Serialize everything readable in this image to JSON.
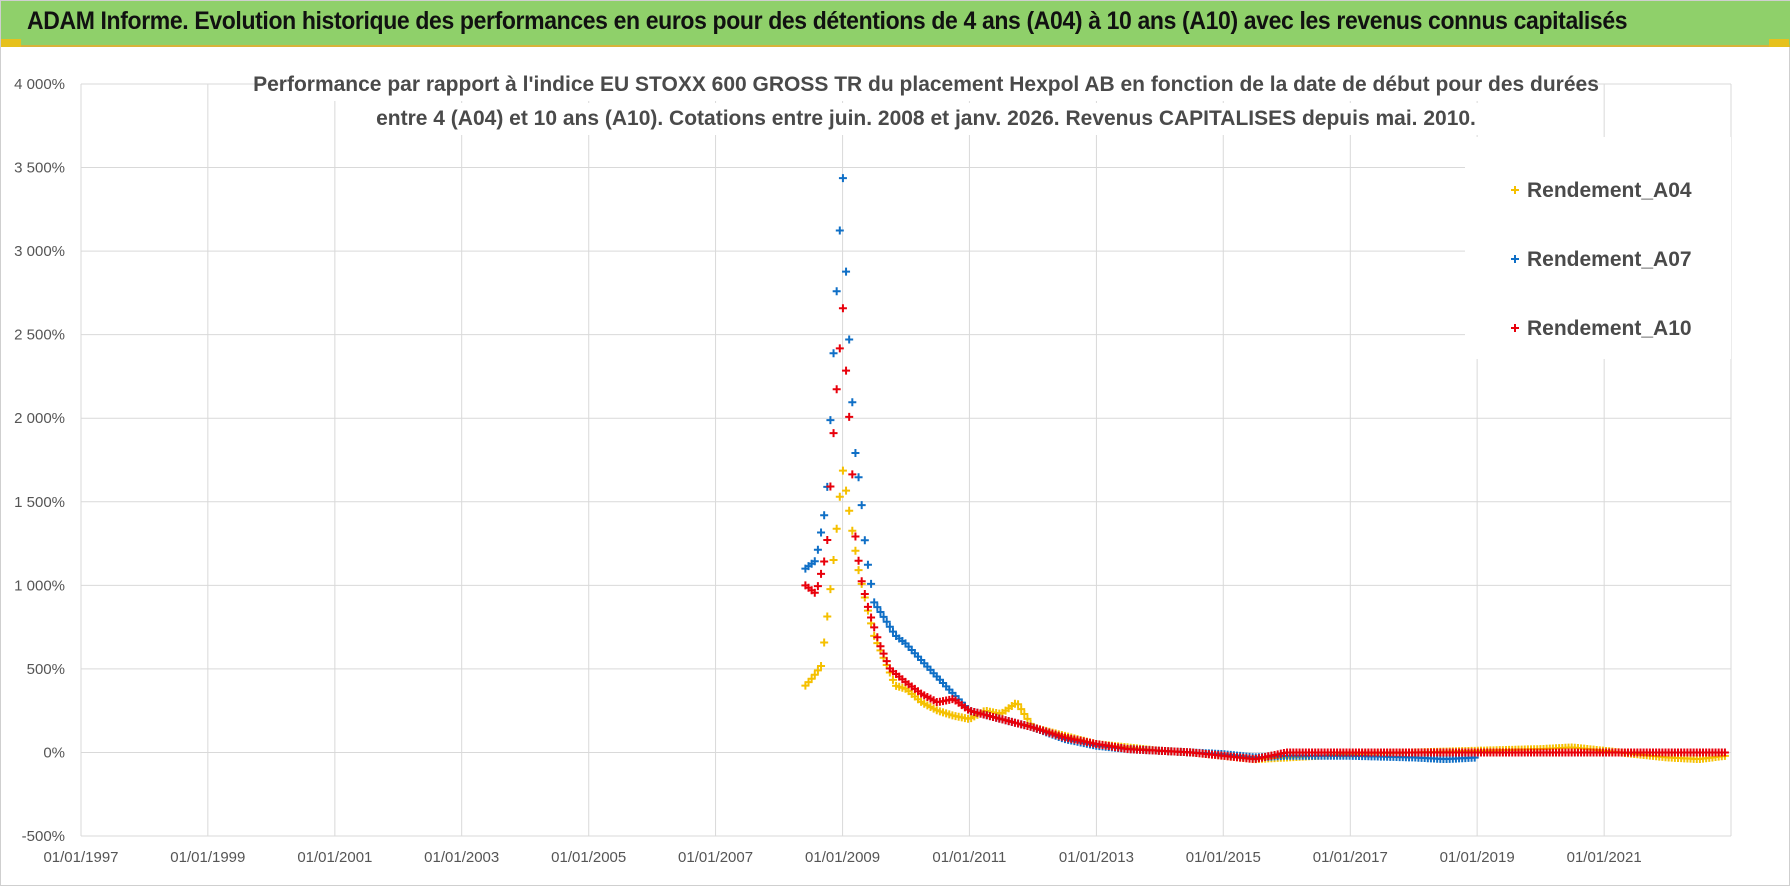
{
  "header": {
    "title": "ADAM Informe. Evolution historique des performances en euros pour des détentions de 4 ans (A04) à 10 ans (A10) avec les revenus connus capitalisés"
  },
  "colors": {
    "header_bg": "#8fd06a",
    "A04": "#f5c000",
    "A07": "#0f6fc6",
    "A10": "#e8000b",
    "grid": "#d9d9d9"
  },
  "chart_data": {
    "type": "scatter",
    "title_lines": [
      "Performance par rapport à l'indice EU STOXX 600 GROSS TR  du placement Hexpol AB en fonction de la date de début pour des durées",
      "entre 4 (A04) et 10 ans (A10). Cotations entre juin. 2008 et janv. 2026. Revenus CAPITALISES depuis mai. 2010."
    ],
    "x_axis": {
      "type": "date",
      "range": [
        "1997-01-01",
        "2023-01-01"
      ],
      "tick_labels": [
        "01/01/1997",
        "01/01/1999",
        "01/01/2001",
        "01/01/2003",
        "01/01/2005",
        "01/01/2007",
        "01/01/2009",
        "01/01/2011",
        "01/01/2013",
        "01/01/2015",
        "01/01/2017",
        "01/01/2019",
        "01/01/2021"
      ]
    },
    "y_axis": {
      "range": [
        -500,
        4000
      ],
      "step": 500,
      "tick_labels": [
        "-500%",
        "0%",
        "500%",
        "1 000%",
        "1 500%",
        "2 000%",
        "2 500%",
        "3 000%",
        "3 500%",
        "4 000%"
      ]
    },
    "grid": true,
    "legend_position": "top-right",
    "marker": "+",
    "series": [
      {
        "name": "Rendement_A04",
        "color": "#f5c000",
        "points": [
          [
            "2008-06-01",
            400
          ],
          [
            "2008-07-15",
            450
          ],
          [
            "2008-09-01",
            520
          ],
          [
            "2008-10-15",
            900
          ],
          [
            "2008-11-15",
            1200
          ],
          [
            "2009-01-01",
            1700
          ],
          [
            "2009-02-15",
            1400
          ],
          [
            "2009-04-01",
            1100
          ],
          [
            "2009-05-15",
            900
          ],
          [
            "2009-07-01",
            700
          ],
          [
            "2009-09-01",
            550
          ],
          [
            "2009-11-01",
            400
          ],
          [
            "2010-01-01",
            380
          ],
          [
            "2010-04-01",
            300
          ],
          [
            "2010-07-01",
            250
          ],
          [
            "2010-10-01",
            220
          ],
          [
            "2011-01-01",
            200
          ],
          [
            "2011-04-01",
            250
          ],
          [
            "2011-07-01",
            230
          ],
          [
            "2011-10-01",
            300
          ],
          [
            "2012-01-01",
            150
          ],
          [
            "2012-07-01",
            100
          ],
          [
            "2013-01-01",
            50
          ],
          [
            "2013-07-01",
            30
          ],
          [
            "2014-01-01",
            10
          ],
          [
            "2014-07-01",
            0
          ],
          [
            "2015-01-01",
            -20
          ],
          [
            "2015-07-01",
            -40
          ],
          [
            "2016-01-01",
            -30
          ],
          [
            "2017-01-01",
            -10
          ],
          [
            "2018-01-01",
            0
          ],
          [
            "2019-01-01",
            10
          ],
          [
            "2019-07-01",
            15
          ],
          [
            "2020-01-01",
            20
          ],
          [
            "2020-07-01",
            30
          ],
          [
            "2021-01-01",
            10
          ],
          [
            "2021-07-01",
            -10
          ],
          [
            "2022-01-01",
            -30
          ],
          [
            "2022-07-01",
            -40
          ],
          [
            "2022-12-01",
            -20
          ]
        ]
      },
      {
        "name": "Rendement_A07",
        "color": "#0f6fc6",
        "points": [
          [
            "2008-06-01",
            1100
          ],
          [
            "2008-08-01",
            1150
          ],
          [
            "2008-10-01",
            1500
          ],
          [
            "2008-11-15",
            2500
          ],
          [
            "2008-12-15",
            3100
          ],
          [
            "2009-01-01",
            3500
          ],
          [
            "2009-01-20",
            2900
          ],
          [
            "2009-02-20",
            2200
          ],
          [
            "2009-03-15",
            1800
          ],
          [
            "2009-04-15",
            1550
          ],
          [
            "2009-05-15",
            1200
          ],
          [
            "2009-07-01",
            900
          ],
          [
            "2009-09-01",
            800
          ],
          [
            "2009-11-01",
            700
          ],
          [
            "2010-01-01",
            650
          ],
          [
            "2010-04-01",
            550
          ],
          [
            "2010-07-01",
            450
          ],
          [
            "2010-10-01",
            350
          ],
          [
            "2011-01-01",
            250
          ],
          [
            "2011-07-01",
            200
          ],
          [
            "2012-01-01",
            150
          ],
          [
            "2012-07-01",
            80
          ],
          [
            "2013-01-01",
            40
          ],
          [
            "2013-07-01",
            20
          ],
          [
            "2014-01-01",
            10
          ],
          [
            "2014-07-01",
            0
          ],
          [
            "2015-01-01",
            -10
          ],
          [
            "2015-07-01",
            -30
          ],
          [
            "2016-01-01",
            -20
          ],
          [
            "2017-01-01",
            -20
          ],
          [
            "2018-01-01",
            -30
          ],
          [
            "2018-07-01",
            -40
          ],
          [
            "2019-01-01",
            -30
          ]
        ]
      },
      {
        "name": "Rendement_A10",
        "color": "#e8000b",
        "points": [
          [
            "2008-06-01",
            1000
          ],
          [
            "2008-08-01",
            950
          ],
          [
            "2008-10-01",
            1200
          ],
          [
            "2008-11-15",
            2000
          ],
          [
            "2008-12-15",
            2400
          ],
          [
            "2009-01-01",
            2700
          ],
          [
            "2009-01-20",
            2300
          ],
          [
            "2009-02-15",
            1900
          ],
          [
            "2009-03-15",
            1300
          ],
          [
            "2009-04-15",
            1050
          ],
          [
            "2009-06-01",
            850
          ],
          [
            "2009-08-01",
            650
          ],
          [
            "2009-10-01",
            500
          ],
          [
            "2010-01-01",
            420
          ],
          [
            "2010-04-01",
            350
          ],
          [
            "2010-07-01",
            300
          ],
          [
            "2010-10-01",
            320
          ],
          [
            "2011-01-01",
            250
          ],
          [
            "2011-07-01",
            200
          ],
          [
            "2012-01-01",
            150
          ],
          [
            "2012-07-01",
            90
          ],
          [
            "2013-01-01",
            50
          ],
          [
            "2013-07-01",
            20
          ],
          [
            "2014-01-01",
            10
          ],
          [
            "2014-07-01",
            0
          ],
          [
            "2015-01-01",
            -20
          ],
          [
            "2015-07-01",
            -40
          ],
          [
            "2016-01-01",
            0
          ],
          [
            "2017-01-01",
            0
          ],
          [
            "2018-01-01",
            0
          ],
          [
            "2019-01-01",
            0
          ],
          [
            "2020-01-01",
            0
          ],
          [
            "2021-01-01",
            0
          ],
          [
            "2022-01-01",
            0
          ],
          [
            "2022-12-01",
            0
          ]
        ]
      }
    ]
  }
}
